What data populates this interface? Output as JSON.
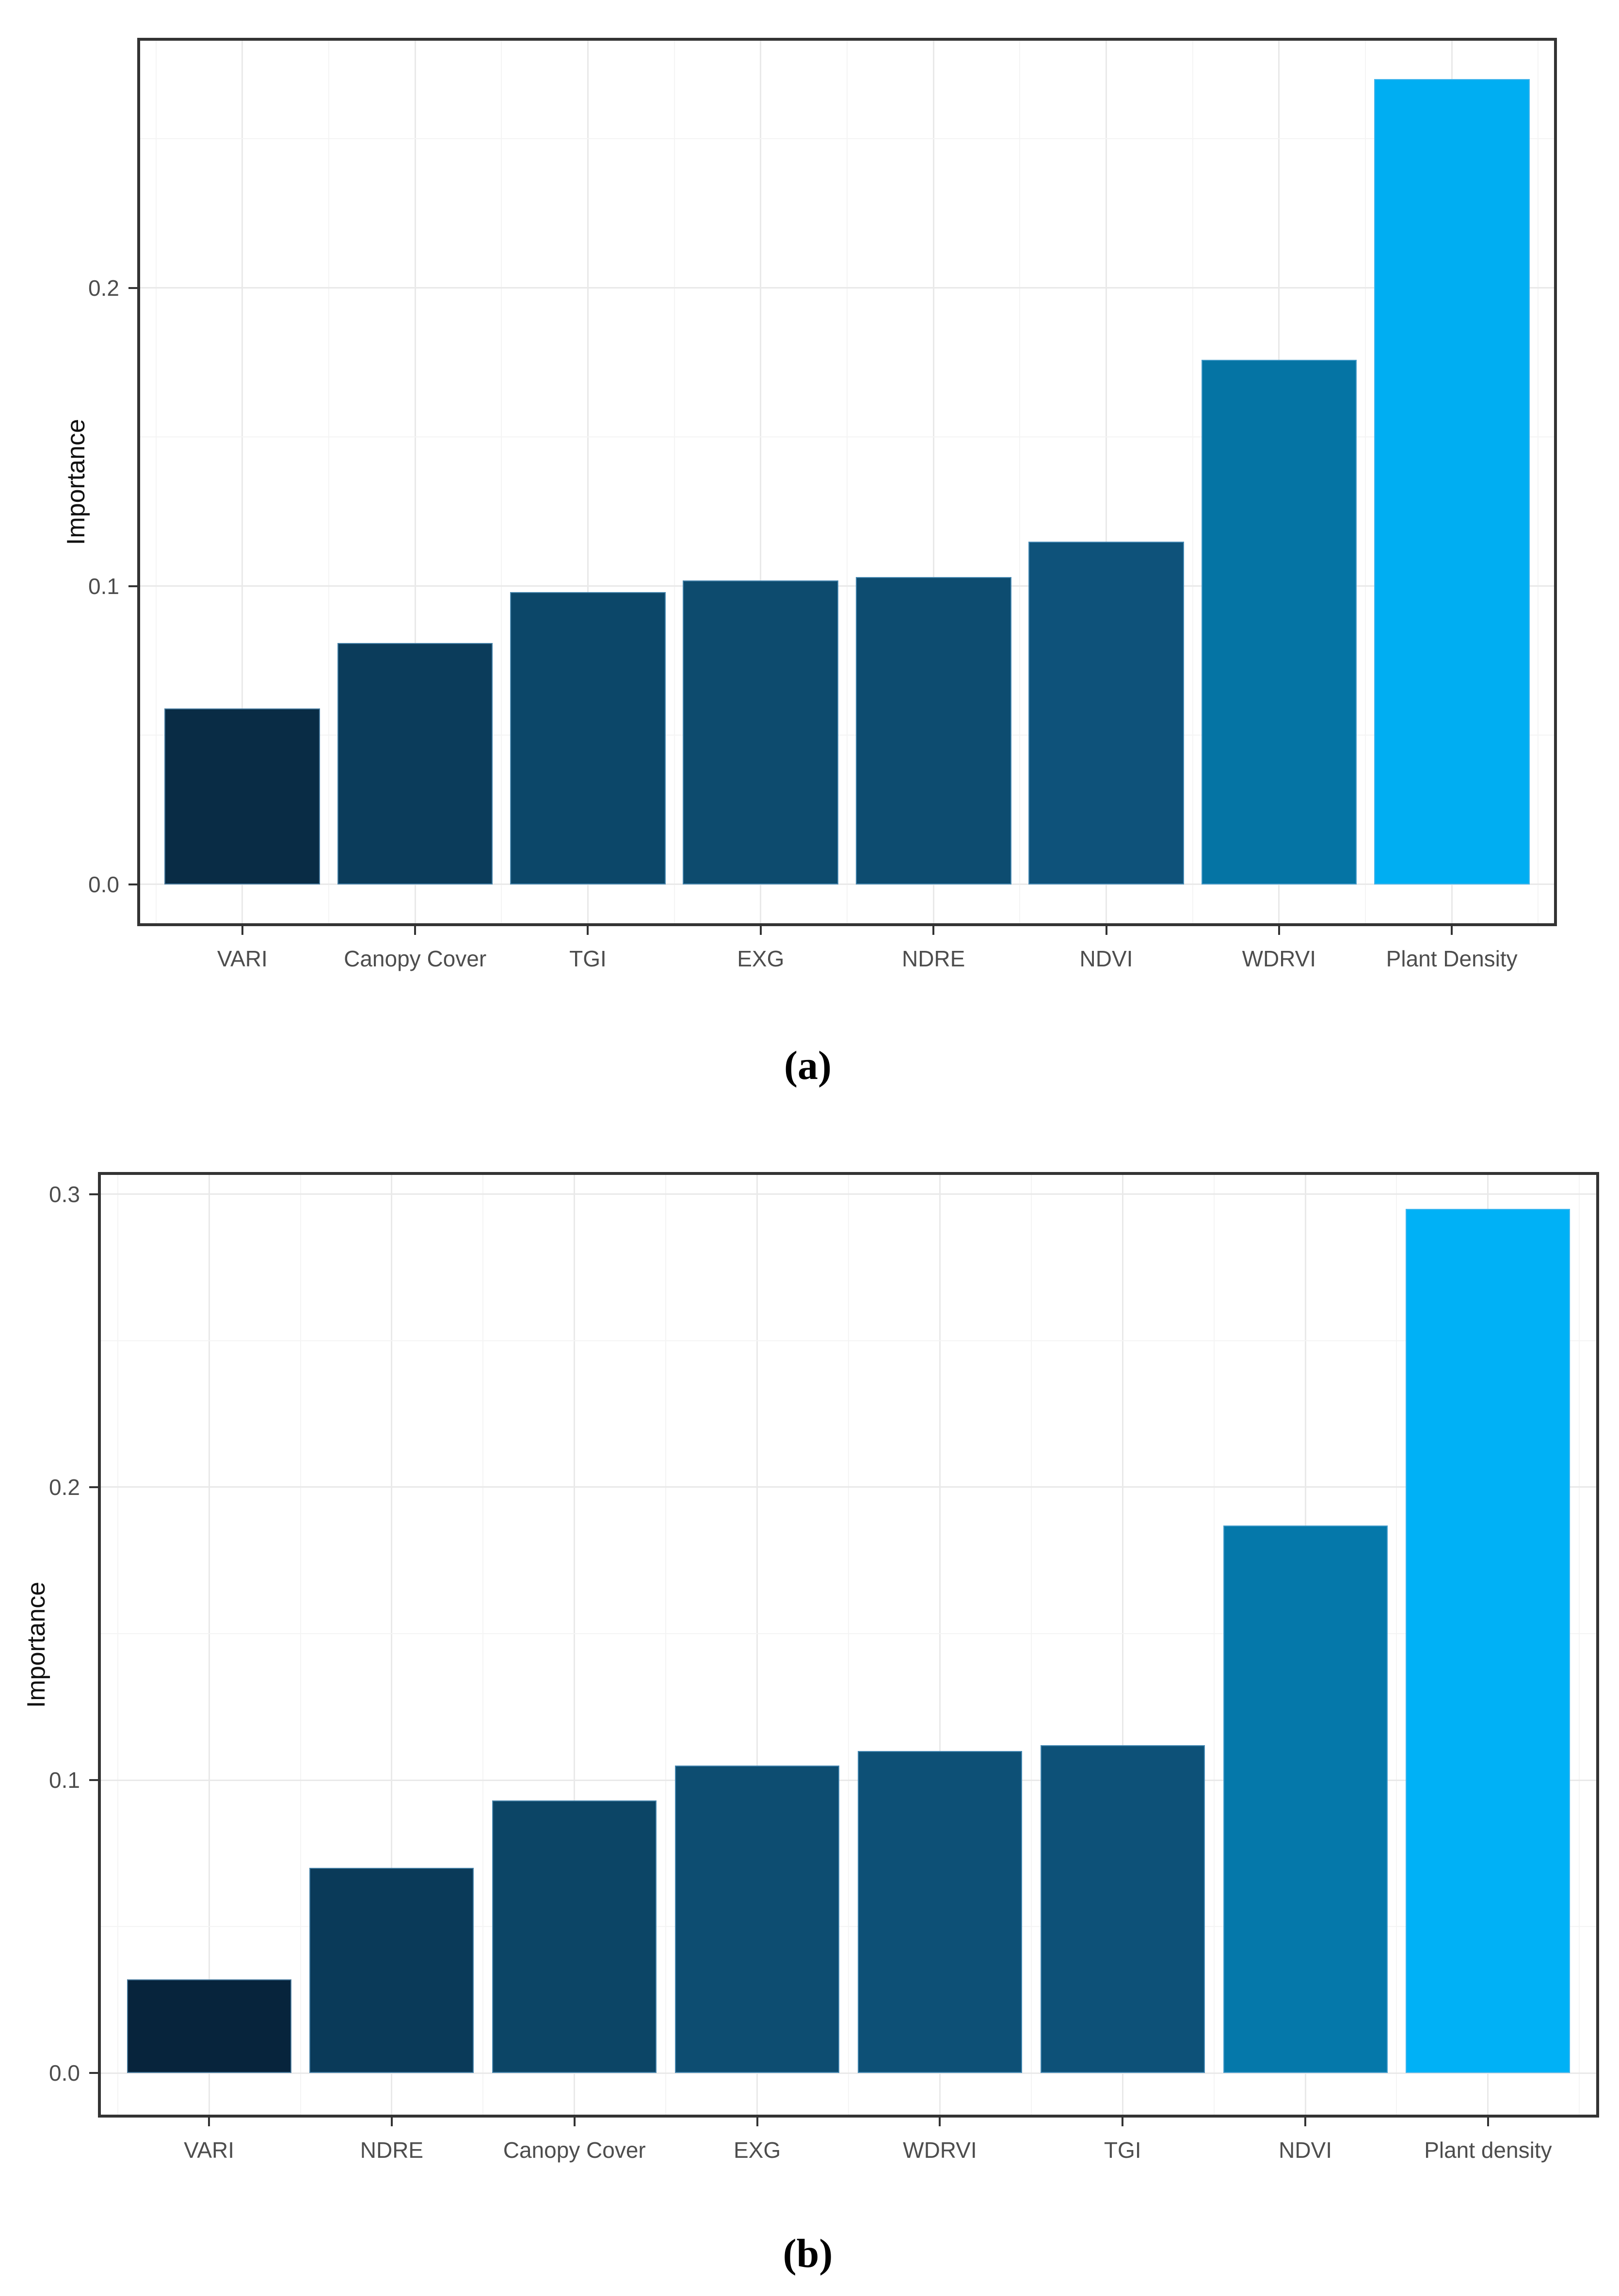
{
  "figure": {
    "background": "#ffffff",
    "caption_a": "(a)",
    "caption_b": "(b)"
  },
  "chart_data": [
    {
      "id": "a",
      "type": "bar",
      "title": "",
      "xlabel": "",
      "ylabel": "Importance",
      "caption": "(a)",
      "categories": [
        "VARI",
        "Canopy Cover",
        "TGI",
        "EXG",
        "NDRE",
        "NDVI",
        "WDRVI",
        "Plant Density"
      ],
      "values": [
        0.059,
        0.081,
        0.098,
        0.102,
        0.103,
        0.115,
        0.176,
        0.27
      ],
      "bar_colors": [
        "#092c45",
        "#0b3c5b",
        "#0c4769",
        "#0d4b6e",
        "#0d4c70",
        "#0e527a",
        "#0574a4",
        "#00aef2"
      ],
      "yticks": [
        0.0,
        0.1,
        0.2
      ],
      "ytick_labels": [
        "0.0",
        "0.1",
        "0.2"
      ],
      "ylim": [
        -0.0135,
        0.2834
      ],
      "grid": "major+minor",
      "legend": "none",
      "grid_major_color": "#e9e9e9",
      "grid_minor_color": "#f4f4f4",
      "panel_border_color": "#333333"
    },
    {
      "id": "b",
      "type": "bar",
      "title": "",
      "xlabel": "",
      "ylabel": "Importance",
      "caption": "(b)",
      "categories": [
        "VARI",
        "NDRE",
        "Canopy Cover",
        "EXG",
        "WDRVI",
        "TGI",
        "NDVI",
        "Plant density"
      ],
      "values": [
        0.032,
        0.07,
        0.093,
        0.105,
        0.11,
        0.112,
        0.187,
        0.295
      ],
      "bar_colors": [
        "#07243c",
        "#0a3a59",
        "#0c4566",
        "#0d4d71",
        "#0d5076",
        "#0d5178",
        "#0578aa",
        "#00b1f6"
      ],
      "yticks": [
        0.0,
        0.1,
        0.2,
        0.3
      ],
      "ytick_labels": [
        "0.0",
        "0.1",
        "0.2",
        "0.3"
      ],
      "ylim": [
        -0.0147,
        0.3071
      ],
      "grid": "major+minor",
      "legend": "none",
      "grid_major_color": "#e9e9e9",
      "grid_minor_color": "#f4f4f4",
      "panel_border_color": "#333333"
    }
  ]
}
